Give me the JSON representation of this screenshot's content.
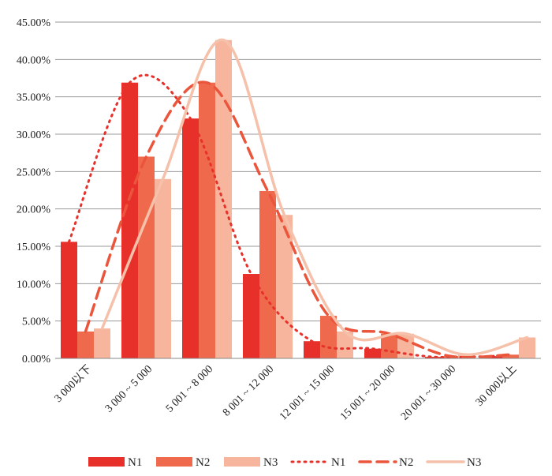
{
  "chart_data": {
    "type": "bar",
    "title": "",
    "xlabel": "",
    "ylabel": "",
    "ylim": [
      0,
      45
    ],
    "y_ticks": [
      "0.00%",
      "5.00%",
      "10.00%",
      "15.00%",
      "20.00%",
      "25.00%",
      "30.00%",
      "35.00%",
      "40.00%",
      "45.00%"
    ],
    "categories": [
      "3 000以下",
      "3 000 ~ 5 000",
      "5 001 ~ 8 000",
      "8 001 ~ 12 000",
      "12 001 ~ 15 000",
      "15 001 ~ 20 000",
      "20 001 ~ 30 000",
      "30 000以上"
    ],
    "series": [
      {
        "name": "N1",
        "values": [
          15.6,
          36.9,
          32.1,
          11.3,
          2.3,
          1.3,
          0.2,
          0.3
        ],
        "color": "#e8302a"
      },
      {
        "name": "N2",
        "values": [
          3.6,
          27.0,
          36.9,
          22.4,
          5.7,
          3.3,
          0.3,
          0.5
        ],
        "color": "#ef6a4c"
      },
      {
        "name": "N3",
        "values": [
          4.0,
          24.0,
          42.6,
          19.2,
          3.6,
          3.3,
          0.5,
          2.8
        ],
        "color": "#f6b59c"
      }
    ],
    "trendlines": [
      {
        "name": "N1",
        "style": "dotted",
        "color": "#e8302a"
      },
      {
        "name": "N2",
        "style": "dashed",
        "color": "#ea553c"
      },
      {
        "name": "N3",
        "style": "solid",
        "color": "#f6c1aa"
      }
    ],
    "grid": true,
    "legend_position": "bottom"
  }
}
